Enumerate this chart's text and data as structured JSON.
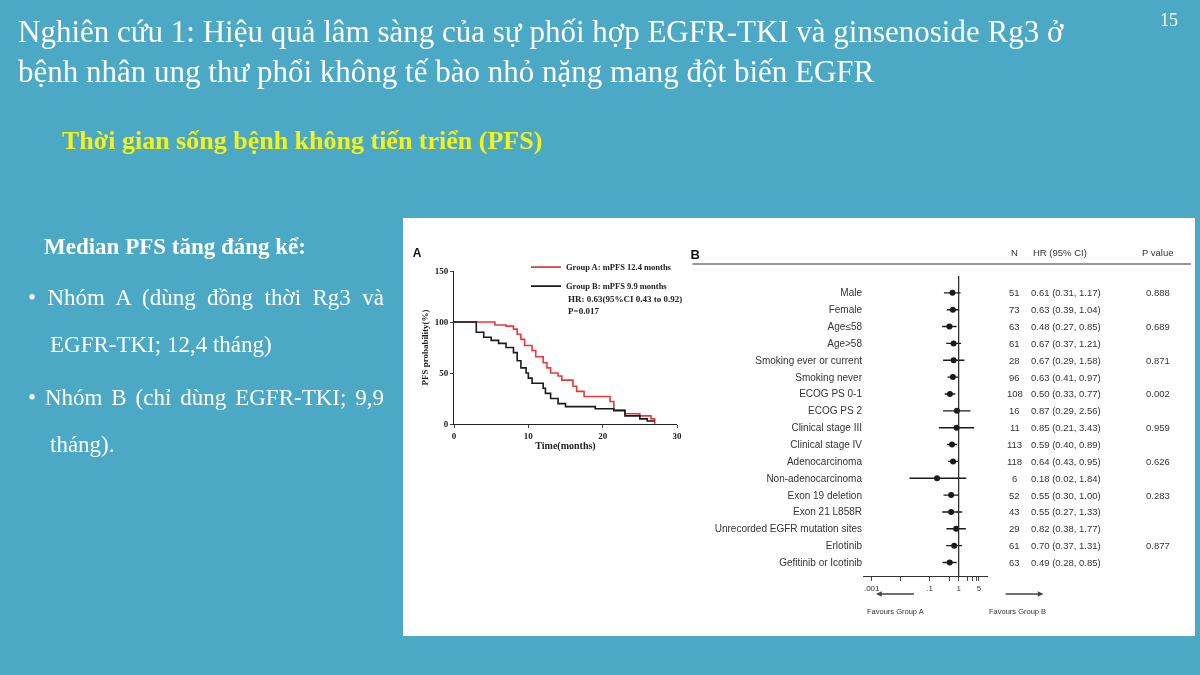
{
  "chart_data": [
    {
      "type": "other",
      "title": "Nghiên cứu 1: Hiệu quả lâm sàng của sự phối hợp EGFR-TKI và ginsenoside Rg3 ở bệnh nhân ung thư phổi không tế bào nhỏ nặng mang đột biến EGFR",
      "subtitle": "Thời gian sống bệnh không tiến triển (PFS)",
      "annotations": [
        "15",
        "Median PFS tăng đáng kể:",
        "• Nhóm A (dùng đồng thời Rg3 và EGFR-TKI; 12,4 tháng)",
        "• Nhóm B (chỉ dùng EGFR-TKI; 9,9 tháng)."
      ]
    },
    {
      "type": "step",
      "title": "A",
      "xlabel": "Time(months)",
      "ylabel": "PFS probability(%)",
      "xlim": [
        0,
        30
      ],
      "xticks": [
        0,
        10,
        20,
        30
      ],
      "ylim": [
        0,
        150
      ],
      "yticks": [
        0,
        50,
        100,
        150
      ],
      "grid": false,
      "legend": "top right",
      "annotations": [
        "HR: 0.63(95%CI 0.43 to 0.92)",
        "P=0.017"
      ],
      "series": [
        {
          "name": "Group A: mPFS 12.4 months",
          "color": "#e8393a",
          "x": [
            0,
            3.2,
            5.5,
            7,
            8,
            8.5,
            9,
            9.5,
            10.5,
            11,
            12,
            12.5,
            13,
            14,
            14.5,
            16,
            16.5,
            17.5,
            20.5,
            21,
            21.5,
            23,
            25,
            26.5,
            27
          ],
          "values": [
            100,
            100,
            97,
            96,
            93,
            88,
            83,
            77,
            72,
            66,
            60,
            55,
            50,
            47,
            43,
            37,
            32,
            27,
            27,
            22,
            14,
            10,
            8,
            5,
            0
          ]
        },
        {
          "name": "Group B: mPFS 9.9 months",
          "color": "#1a1a1a",
          "x": [
            0,
            2.5,
            3,
            4,
            5,
            6,
            7,
            8,
            8.5,
            9,
            9.7,
            10,
            10.5,
            12,
            12.3,
            13,
            14,
            15,
            18,
            19,
            21.5,
            23,
            25,
            26,
            27
          ],
          "values": [
            100,
            100,
            90,
            85,
            82,
            79,
            75,
            70,
            62,
            55,
            50,
            45,
            40,
            35,
            30,
            25,
            20,
            17,
            17,
            15,
            13,
            8,
            5,
            3,
            3
          ]
        }
      ]
    },
    {
      "type": "scatter",
      "title": "B",
      "orientation": "horizontal",
      "log": "x",
      "grid": false,
      "legend": false,
      "marker": "circle",
      "color": "#1a1a1a",
      "categories": [
        "Male",
        "Female",
        "Age≤58",
        "Age>58",
        "Smoking ever or current",
        "Smoking never",
        "ECOG PS 0-1",
        "ECOG PS 2",
        "Clinical stage III",
        "Clinical stage IV",
        "Adenocarcinoma",
        "Non-adenocarcinoma",
        "Exon 19 deletion",
        "Exon 21 L858R",
        "Unrecorded EGFR mutation sites",
        "Erlotinib",
        "Gefitinib or Icotinib"
      ],
      "values": [
        0.61,
        0.63,
        0.48,
        0.67,
        0.67,
        0.63,
        0.5,
        0.87,
        0.85,
        0.59,
        0.64,
        0.18,
        0.55,
        0.55,
        0.82,
        0.7,
        0.49
      ],
      "errors": [
        [
          0.31,
          1.17
        ],
        [
          0.39,
          1.04
        ],
        [
          0.27,
          0.85
        ],
        [
          0.37,
          1.21
        ],
        [
          0.29,
          1.58
        ],
        [
          0.41,
          0.97
        ],
        [
          0.33,
          0.77
        ],
        [
          0.29,
          2.56
        ],
        [
          0.21,
          3.43
        ],
        [
          0.4,
          0.89
        ],
        [
          0.43,
          0.95
        ],
        [
          0.02,
          1.84
        ],
        [
          0.3,
          1.0
        ],
        [
          0.27,
          1.33
        ],
        [
          0.38,
          1.77
        ],
        [
          0.37,
          1.31
        ],
        [
          0.28,
          0.85
        ]
      ],
      "value_labels": [
        "0.61 (0.31, 1.17)",
        "0.63 (0.39, 1.04)",
        "0.48 (0.27, 0.85)",
        "0.67 (0.37, 1.21)",
        "0.67 (0.29, 1.58)",
        "0.63 (0.41, 0.97)",
        "0.50 (0.33, 0.77)",
        "0.87 (0.29, 2.56)",
        "0.85 (0.21, 3.43)",
        "0.59 (0.40, 0.89)",
        "0.64 (0.43, 0.95)",
        "0.18 (0.02, 1.84)",
        "0.55 (0.30, 1.00)",
        "0.55 (0.27, 1.33)",
        "0.82 (0.38, 1.77)",
        "0.70 (0.37, 1.31)",
        "0.49 (0.28, 0.85)"
      ],
      "xlim": [
        0.0005,
        10
      ],
      "xticks": [
        {
          "value": 0.001,
          "label": ".001"
        },
        {
          "value": 0.01,
          "label": null
        },
        {
          "value": 0.1,
          "label": ".1"
        },
        {
          "value": 0.5,
          "label": null
        },
        1,
        {
          "value": 2,
          "label": null
        },
        {
          "value": 3,
          "label": null
        },
        {
          "value": 4,
          "label": null
        },
        5
      ],
      "ref_lines": [
        {
          "axis": "x",
          "value": 1
        }
      ],
      "annotations": [
        "N",
        "HR (95% CI)",
        "P value",
        "51\n73\n63\n61\n28\n96\n108\n16\n11\n113\n118\n6\n52\n43\n29\n61\n63",
        "0.888\n\n0.689\n\n0.871\n\n0.002\n\n0.959\n\n0.626\n\n0.283\n\n\n0.877\n",
        "Favours Group A",
        "Favours Group B"
      ]
    }
  ]
}
